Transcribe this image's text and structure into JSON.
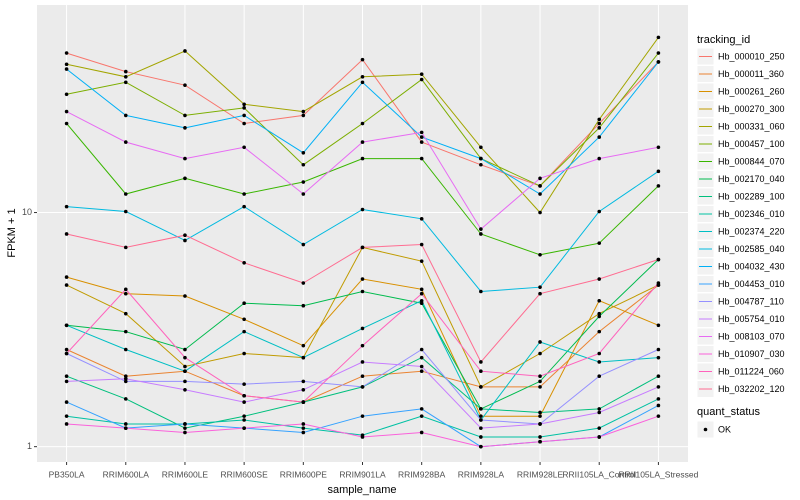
{
  "chart_data": {
    "type": "line",
    "x_label": "sample_name",
    "y_label": "FPKM + 1",
    "yscale": "log",
    "ylim": [
      0.86,
      77
    ],
    "yticks": [
      1,
      10
    ],
    "grid": true,
    "legend_title": "tracking_id",
    "legend_position": "right",
    "point_color": "#000000",
    "shape_legend": {
      "title": "quant_status",
      "labels": [
        "OK"
      ]
    },
    "categories": [
      "PB350LA",
      "RRIM600LA",
      "RRIM600LE",
      "RRIM600SE",
      "RRIM600PE",
      "RRIM901LA",
      "RRIM928BA",
      "RRIM928LA",
      "RRIM928LE",
      "RRII105LA_Control",
      "RRII105LA_Stressed"
    ],
    "series": [
      {
        "name": "Hb_000010_250",
        "color": "#F8766D",
        "values": [
          48,
          40,
          35,
          24,
          26,
          45,
          20,
          16,
          13,
          24,
          44
        ]
      },
      {
        "name": "Hb_000011_360",
        "color": "#EA8331",
        "values": [
          2.6,
          2.0,
          2.1,
          1.65,
          1.55,
          2.0,
          2.1,
          1.8,
          1.8,
          3.1,
          4.9
        ]
      },
      {
        "name": "Hb_000261_260",
        "color": "#D89000",
        "values": [
          5.3,
          4.5,
          4.4,
          3.5,
          2.7,
          5.2,
          4.7,
          1.35,
          1.35,
          4.2,
          3.3
        ]
      },
      {
        "name": "Hb_000270_300",
        "color": "#C09B00",
        "values": [
          4.9,
          3.7,
          2.2,
          2.5,
          2.4,
          7.1,
          6.2,
          1.8,
          2.5,
          3.7,
          4.9
        ]
      },
      {
        "name": "Hb_000331_060",
        "color": "#A3A500",
        "values": [
          43,
          38,
          49,
          29,
          27,
          38,
          39,
          19,
          10,
          25,
          56
        ]
      },
      {
        "name": "Hb_000457_100",
        "color": "#7CAE00",
        "values": [
          32,
          36,
          26,
          28,
          16,
          24,
          37,
          17,
          13,
          23,
          48
        ]
      },
      {
        "name": "Hb_000844_070",
        "color": "#39B600",
        "values": [
          24,
          12,
          14,
          12,
          13.5,
          17,
          17,
          8.1,
          6.6,
          7.4,
          13
        ]
      },
      {
        "name": "Hb_002170_040",
        "color": "#00BB4E",
        "values": [
          3.3,
          3.1,
          2.6,
          4.1,
          4.0,
          4.6,
          4.1,
          1.45,
          1.9,
          3.6,
          6.3
        ]
      },
      {
        "name": "Hb_002289_100",
        "color": "#00BF7D",
        "values": [
          2.0,
          1.6,
          1.2,
          1.35,
          1.55,
          1.8,
          2.4,
          1.45,
          1.4,
          1.45,
          2.0
        ]
      },
      {
        "name": "Hb_002346_010",
        "color": "#00C1A3",
        "values": [
          1.35,
          1.25,
          1.25,
          1.3,
          1.2,
          1.12,
          1.35,
          1.1,
          1.1,
          1.2,
          1.6
        ]
      },
      {
        "name": "Hb_002374_220",
        "color": "#00BFC4",
        "values": [
          3.3,
          2.6,
          2.1,
          3.1,
          2.4,
          3.2,
          4.2,
          1.3,
          2.8,
          2.3,
          2.4
        ]
      },
      {
        "name": "Hb_002585_040",
        "color": "#00BAE0",
        "values": [
          10.6,
          10.1,
          7.6,
          10.6,
          7.3,
          10.3,
          9.4,
          4.6,
          4.8,
          10.1,
          15
        ]
      },
      {
        "name": "Hb_004032_430",
        "color": "#00B0F6",
        "values": [
          41,
          26,
          23,
          26,
          18,
          36,
          21,
          17,
          12,
          21,
          44
        ]
      },
      {
        "name": "Hb_004453_010",
        "color": "#35A2FF",
        "values": [
          1.55,
          1.2,
          1.25,
          1.2,
          1.15,
          1.35,
          1.45,
          1.0,
          1.05,
          1.1,
          1.5
        ]
      },
      {
        "name": "Hb_004787_110",
        "color": "#9590FF",
        "values": [
          2.5,
          1.9,
          1.9,
          1.85,
          1.9,
          1.8,
          2.6,
          1.3,
          1.25,
          2.0,
          2.6
        ]
      },
      {
        "name": "Hb_005754_010",
        "color": "#C77CFF",
        "values": [
          1.9,
          1.95,
          1.75,
          1.55,
          1.75,
          2.3,
          2.2,
          1.2,
          1.25,
          1.4,
          1.8
        ]
      },
      {
        "name": "Hb_008103_070",
        "color": "#E76BF3",
        "values": [
          27,
          20,
          17,
          19,
          12,
          20,
          22,
          8.5,
          14,
          17,
          19
        ]
      },
      {
        "name": "Hb_010907_030",
        "color": "#FA62DB",
        "values": [
          1.25,
          1.2,
          1.15,
          1.2,
          1.25,
          1.1,
          1.15,
          1.0,
          1.05,
          1.1,
          1.35
        ]
      },
      {
        "name": "Hb_011224_060",
        "color": "#FF62BC",
        "values": [
          2.5,
          4.7,
          2.4,
          1.65,
          1.55,
          2.7,
          4.5,
          2.1,
          2.0,
          2.5,
          5.0
        ]
      },
      {
        "name": "Hb_032202_120",
        "color": "#FF6C91",
        "values": [
          8.1,
          7.1,
          8.0,
          6.1,
          5.0,
          7.1,
          7.3,
          2.3,
          4.5,
          5.2,
          6.3
        ]
      }
    ]
  }
}
